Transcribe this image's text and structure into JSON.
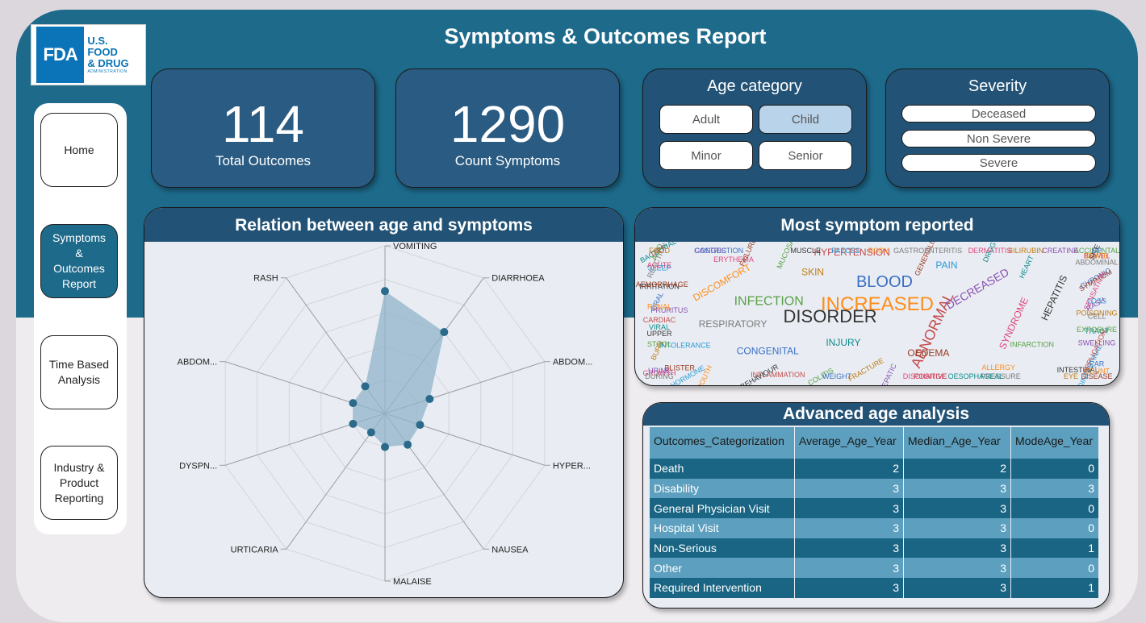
{
  "logo": {
    "mark": "FDA",
    "line1": "U.S. FOOD",
    "line2": "& DRUG",
    "line3": "ADMINISTRATION"
  },
  "title": "Symptoms & Outcomes Report",
  "nav": [
    {
      "label": "Home",
      "active": false
    },
    {
      "label": "Symptoms & Outcomes Report",
      "active": true
    },
    {
      "label": "Time Based Analysis",
      "active": false
    },
    {
      "label": "Industry & Product Reporting",
      "active": false
    }
  ],
  "kpis": [
    {
      "value": "114",
      "label": "Total Outcomes"
    },
    {
      "value": "1290",
      "label": "Count Symptoms"
    }
  ],
  "age_filter": {
    "title": "Age category",
    "options": [
      "Adult",
      "Child",
      "Minor",
      "Senior"
    ],
    "selected": "Child"
  },
  "severity_filter": {
    "title": "Severity",
    "options": [
      "Deceased",
      "Non Severe",
      "Severe"
    ]
  },
  "radar": {
    "title": "Relation between age and symptoms",
    "axes": [
      "VOMITING",
      "DIARRHOEA",
      "ABDOM...",
      "HYPER...",
      "NAUSEA",
      "MALAISE",
      "URTICARIA",
      "DYSPN...",
      "ABDOM...",
      "RASH"
    ],
    "values": [
      0.73,
      0.6,
      0.28,
      0.22,
      0.23,
      0.2,
      0.14,
      0.2,
      0.2,
      0.2
    ],
    "fill_color": "#8fb3c9",
    "point_color": "#2a6a8a"
  },
  "wordcloud": {
    "title": "Most symptom reported",
    "words": [
      "INCREASED",
      "DISORDER",
      "BLOOD",
      "ABNORMAL",
      "INFECTION",
      "DECREASED",
      "INJURY",
      "SKIN",
      "SYNDROME",
      "RESPIRATORY",
      "PAIN",
      "OEDEMA",
      "DISCOMFORT",
      "HEPATITIS",
      "CONGENITAL",
      "HYPERTENSION",
      "INFARCTION",
      "PRURITUS",
      "HEART",
      "FRACTURE",
      "ERYTHEMA",
      "CELL",
      "INTOLERANCE",
      "GENERALISED",
      "ALLERGY",
      "IRRITATION",
      "CHRONIC",
      "INFLAMMATION",
      "MUCOSAL",
      "SWELLING",
      "VIRAL",
      "BILIRUBIN",
      "DISCHARGE",
      "REACTION",
      "LOSS",
      "BLISTER",
      "BODY",
      "INTESTINAL",
      "ORAL",
      "BOWEL",
      "COLITIS",
      "GASTRIC",
      "TRACT",
      "BURN",
      "DERMATITIS",
      "PRESSURE",
      "SLEEP",
      "SYMPTOM",
      "MOUTH",
      "MUSCLE",
      "EAR",
      "CARDIAC",
      "ACCIDENTAL",
      "HEPATIC",
      "BACTERIAL",
      "POISONING",
      "GROWTH",
      "GASTROENTERITIS",
      "GASTROINTESTINAL",
      "HAEMORRHAGE",
      "DEATH",
      "BEHAVIOUR",
      "CONGESTION",
      "APPLICATION",
      "STOOL",
      "CREATINE",
      "OESOPHAGEAL",
      "FOOD",
      "SENSATION",
      "DURING",
      "FAECES",
      "DISEASE",
      "RENAL",
      "SITE",
      "WEIGHT",
      "DRY",
      "EXPOSURE",
      "URINE",
      "DRUG",
      "EYE",
      "ACUTE",
      "ABDOMINAL",
      "HORMONE",
      "FAILURE",
      "COUNT",
      "UPPER",
      "UP",
      "POSITIVE",
      "ACID",
      "RASH"
    ]
  },
  "table": {
    "title": "Advanced age analysis",
    "columns": [
      "Outcomes_Categorization",
      "Average_Age_Year",
      "Median_Age_Year",
      "ModeAge_Year"
    ],
    "rows": [
      [
        "Death",
        "2",
        "2",
        "0"
      ],
      [
        "Disability",
        "3",
        "3",
        "3"
      ],
      [
        "General Physician Visit",
        "3",
        "3",
        "0"
      ],
      [
        "Hospital Visit",
        "3",
        "3",
        "0"
      ],
      [
        "Non-Serious",
        "3",
        "3",
        "1"
      ],
      [
        "Other",
        "3",
        "3",
        "0"
      ],
      [
        "Required Intervention",
        "3",
        "3",
        "1"
      ]
    ]
  }
}
